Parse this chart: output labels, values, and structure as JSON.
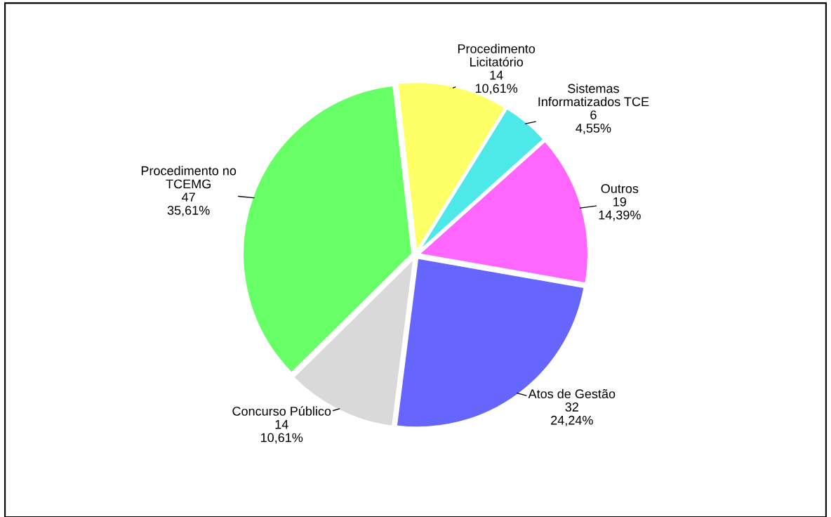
{
  "chart_data": {
    "type": "pie",
    "categories": [
      "Procedimento\nLicitatório",
      "Sistemas\nInformatizados TCE",
      "Outros",
      "Atos de Gestão",
      "Concurso Público",
      "Procedimento no\nTCEMG"
    ],
    "values": [
      14,
      6,
      19,
      32,
      14,
      47
    ],
    "value_labels": [
      "14\n10,61%",
      "6\n4,55%",
      "19\n14,39%",
      "32\n24,24%",
      "14\n10,61%",
      "47\n35,61%"
    ],
    "colors": [
      "#ffff66",
      "#4de8e8",
      "#ff66ff",
      "#6666ff",
      "#d9d9d9",
      "#66ff66"
    ]
  }
}
